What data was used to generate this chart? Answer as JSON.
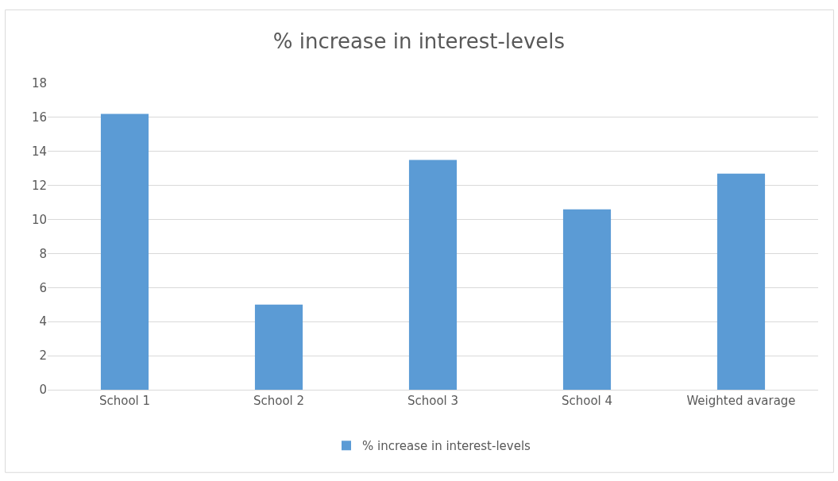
{
  "chart_data": {
    "type": "bar",
    "title": "% increase in interest-levels",
    "categories": [
      "School 1",
      "School 2",
      "School 3",
      "School 4",
      "Weighted avarage"
    ],
    "series": [
      {
        "name": "% increase in interest-levels",
        "color": "#5b9bd5",
        "values": [
          16.2,
          5.0,
          13.5,
          10.6,
          12.7
        ]
      }
    ],
    "ylim": [
      0,
      18
    ],
    "yticks": [
      0,
      2,
      4,
      6,
      8,
      10,
      12,
      14,
      16,
      18
    ],
    "grid": "y",
    "legend": "bottom"
  }
}
